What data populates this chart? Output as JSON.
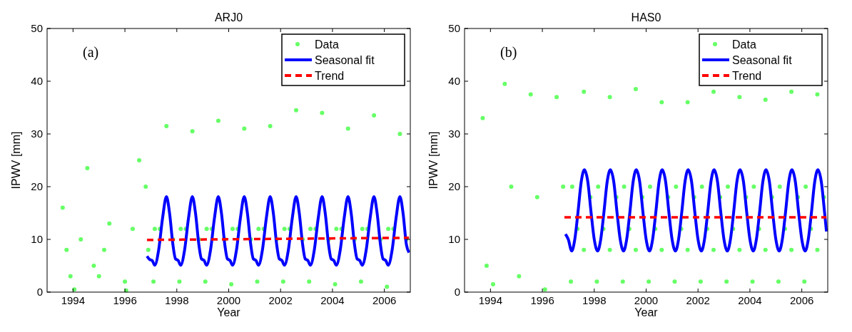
{
  "chart_data": [
    {
      "type": "scatter",
      "title": "ARJ0",
      "xlabel": "Year",
      "ylabel": "IPWV [mm]",
      "annotations": [
        "(a)"
      ],
      "xlim": [
        1993,
        2007
      ],
      "xticks": [
        1994,
        1996,
        1998,
        2000,
        2002,
        2004,
        2006
      ],
      "ylim": [
        0,
        50
      ],
      "yticks": [
        0,
        10,
        20,
        30,
        40,
        50
      ],
      "grid": false,
      "legend": "top right",
      "series": [
        {
          "name": "Data",
          "marker": "circle",
          "color": "#66ff66",
          "x": [
            1993.6,
            1993.75,
            1993.9,
            1994.05,
            1994.3,
            1994.55,
            1994.8,
            1995.0,
            1995.2,
            1995.4,
            1996.0,
            1996.05,
            1996.3,
            1996.55,
            1996.8,
            1996.9,
            1997.1,
            1997.15,
            1997.35,
            1997.6,
            1997.85,
            1998.1,
            1998.15,
            1998.35,
            1998.6,
            1998.85,
            1999.1,
            1999.15,
            1999.35,
            1999.6,
            1999.85,
            2000.1,
            2000.15,
            2000.35,
            2000.6,
            2000.85,
            2001.1,
            2001.15,
            2001.35,
            2001.6,
            2001.85,
            2002.1,
            2002.15,
            2002.35,
            2002.6,
            2002.85,
            2003.1,
            2003.15,
            2003.35,
            2003.6,
            2003.85,
            2004.1,
            2004.15,
            2004.35,
            2004.6,
            2004.85,
            2005.1,
            2005.15,
            2005.35,
            2005.6,
            2005.85,
            2006.1,
            2006.15,
            2006.35,
            2006.6,
            2006.85
          ],
          "values": [
            16,
            8,
            3,
            0.5,
            10,
            23.5,
            5,
            3,
            8,
            13,
            2,
            0.3,
            12,
            25,
            20,
            8,
            2,
            12,
            12,
            31.5,
            10,
            2,
            12,
            12,
            30.5,
            10,
            2,
            12,
            12,
            32.5,
            10,
            1.5,
            12,
            12,
            31,
            10,
            2,
            12,
            12,
            31.5,
            10,
            2,
            12,
            12,
            34.5,
            10,
            2,
            12,
            12,
            34,
            10,
            1.5,
            12,
            12,
            31,
            10,
            2,
            12,
            12,
            33.5,
            10,
            1,
            12,
            12,
            30,
            10
          ]
        },
        {
          "name": "Seasonal fit",
          "type": "line",
          "marker": "none",
          "line_style": "solid",
          "color": "#0000ff",
          "x": [
            1996.85,
            1996.95,
            1997.05,
            1997.15,
            1997.3,
            1997.45,
            1997.6,
            1997.72,
            1997.85,
            1997.95,
            1998.05,
            1998.15,
            1998.3,
            1998.45,
            1998.6,
            1998.72,
            1998.85,
            1998.95,
            1999.05,
            1999.15,
            1999.3,
            1999.45,
            1999.6,
            1999.72,
            1999.85,
            1999.95,
            2000.05,
            2000.15,
            2000.3,
            2000.45,
            2000.6,
            2000.72,
            2000.85,
            2000.95,
            2001.05,
            2001.15,
            2001.3,
            2001.45,
            2001.6,
            2001.72,
            2001.85,
            2001.95,
            2002.05,
            2002.15,
            2002.3,
            2002.45,
            2002.6,
            2002.72,
            2002.85,
            2002.95,
            2003.05,
            2003.15,
            2003.3,
            2003.45,
            2003.6,
            2003.72,
            2003.85,
            2003.95,
            2004.05,
            2004.15,
            2004.3,
            2004.45,
            2004.6,
            2004.72,
            2004.85,
            2004.95,
            2005.05,
            2005.15,
            2005.3,
            2005.45,
            2005.6,
            2005.72,
            2005.85,
            2005.95,
            2006.05,
            2006.15,
            2006.3,
            2006.45,
            2006.6,
            2006.72,
            2006.85,
            2006.95
          ],
          "values": [
            6.8,
            6.2,
            6.0,
            5.1,
            8,
            14,
            18.1,
            15,
            9,
            6.3,
            6.0,
            5.1,
            8,
            14,
            18.1,
            15,
            9,
            6.3,
            6.0,
            5.1,
            8,
            14,
            18.1,
            15,
            9,
            6.3,
            6.0,
            5.1,
            8,
            14,
            18.1,
            15,
            9,
            6.3,
            6.0,
            5.1,
            8,
            14,
            18.1,
            15,
            9,
            6.3,
            6.0,
            5.1,
            8,
            14,
            18.1,
            15,
            9,
            6.3,
            6.0,
            5.1,
            8,
            14,
            18.1,
            15,
            9,
            6.3,
            6.0,
            5.1,
            8,
            14,
            18.1,
            15,
            9,
            6.3,
            6.0,
            5.1,
            8,
            14,
            18.1,
            15,
            9,
            6.3,
            6.0,
            5.1,
            8,
            14,
            18.1,
            15,
            9,
            7.5
          ]
        },
        {
          "name": "Trend",
          "type": "line",
          "marker": "none",
          "line_style": "dashed",
          "color": "#ff0000",
          "x": [
            1996.85,
            2006.95
          ],
          "values": [
            9.9,
            10.3
          ]
        }
      ]
    },
    {
      "type": "scatter",
      "title": "HAS0",
      "xlabel": "Year",
      "ylabel": "IPWV [mm]",
      "annotations": [
        "(b)"
      ],
      "xlim": [
        1993,
        2007
      ],
      "xticks": [
        1994,
        1996,
        1998,
        2000,
        2002,
        2004,
        2006
      ],
      "ylim": [
        0,
        50
      ],
      "yticks": [
        0,
        10,
        20,
        30,
        40,
        50
      ],
      "grid": false,
      "legend": "top right",
      "series": [
        {
          "name": "Data",
          "marker": "circle",
          "color": "#66ff66",
          "x": [
            1993.7,
            1993.85,
            1994.1,
            1994.55,
            1994.8,
            1995.1,
            1995.55,
            1995.8,
            1996.1,
            1996.55,
            1996.8,
            1997.1,
            1997.15,
            1997.35,
            1997.6,
            1997.6,
            1997.85,
            1998.1,
            1998.15,
            1998.35,
            1998.6,
            1998.6,
            1998.85,
            1999.1,
            1999.15,
            1999.35,
            1999.6,
            1999.6,
            1999.85,
            2000.1,
            2000.15,
            2000.35,
            2000.6,
            2000.6,
            2000.85,
            2001.1,
            2001.15,
            2001.35,
            2001.6,
            2001.6,
            2001.85,
            2002.1,
            2002.15,
            2002.35,
            2002.6,
            2002.6,
            2002.85,
            2003.1,
            2003.15,
            2003.35,
            2003.6,
            2003.6,
            2003.85,
            2004.1,
            2004.15,
            2004.35,
            2004.6,
            2004.6,
            2004.85,
            2005.1,
            2005.15,
            2005.35,
            2005.6,
            2005.6,
            2005.85,
            2006.1,
            2006.15,
            2006.35,
            2006.6,
            2006.6,
            2006.85
          ],
          "values": [
            33,
            5,
            1.5,
            39.5,
            20,
            3,
            37.5,
            18,
            0.5,
            37,
            20,
            2,
            20,
            12,
            38,
            8,
            18,
            2,
            20,
            12,
            37,
            8,
            18,
            2,
            20,
            12,
            38.5,
            8,
            18,
            2,
            20,
            12,
            36,
            8,
            18,
            2,
            20,
            12,
            36,
            8,
            18,
            2,
            20,
            12,
            38,
            8,
            18,
            2,
            20,
            12,
            37,
            8,
            18,
            2,
            20,
            12,
            36.5,
            8,
            18,
            2,
            20,
            12,
            38,
            8,
            18,
            2,
            20,
            12,
            37.5,
            8,
            18
          ]
        },
        {
          "name": "Seasonal fit",
          "type": "line",
          "marker": "none",
          "line_style": "solid",
          "color": "#0000ff",
          "x": [
            1996.89,
            1997.0,
            1997.13,
            1997.25,
            1997.37,
            1997.5,
            1997.62,
            1997.75,
            1997.88,
            1998.0,
            1998.13,
            1998.25,
            1998.37,
            1998.5,
            1998.62,
            1998.75,
            1998.88,
            1999.0,
            1999.13,
            1999.25,
            1999.37,
            1999.5,
            1999.62,
            1999.75,
            1999.88,
            2000.0,
            2000.13,
            2000.25,
            2000.37,
            2000.5,
            2000.62,
            2000.75,
            2000.88,
            2001.0,
            2001.13,
            2001.25,
            2001.37,
            2001.5,
            2001.62,
            2001.75,
            2001.88,
            2002.0,
            2002.13,
            2002.25,
            2002.37,
            2002.5,
            2002.62,
            2002.75,
            2002.88,
            2003.0,
            2003.13,
            2003.25,
            2003.37,
            2003.5,
            2003.62,
            2003.75,
            2003.88,
            2004.0,
            2004.13,
            2004.25,
            2004.37,
            2004.5,
            2004.62,
            2004.75,
            2004.88,
            2005.0,
            2005.13,
            2005.25,
            2005.37,
            2005.5,
            2005.62,
            2005.75,
            2005.88,
            2006.0,
            2006.13,
            2006.25,
            2006.37,
            2006.5,
            2006.62,
            2006.75,
            2006.88,
            2006.95
          ],
          "values": [
            11,
            10,
            7.8,
            10,
            15,
            21,
            23.2,
            21,
            15,
            10,
            7.8,
            10,
            15,
            21,
            23.2,
            21,
            15,
            10,
            7.8,
            10,
            15,
            21,
            23.2,
            21,
            15,
            10,
            7.8,
            10,
            15,
            21,
            23.2,
            21,
            15,
            10,
            7.8,
            10,
            15,
            21,
            23.2,
            21,
            15,
            10,
            7.8,
            10,
            15,
            21,
            23.2,
            21,
            15,
            10,
            7.8,
            10,
            15,
            21,
            23.2,
            21,
            15,
            10,
            7.8,
            10,
            15,
            21,
            23.2,
            21,
            15,
            10,
            7.8,
            10,
            15,
            21,
            23.2,
            21,
            15,
            10,
            7.8,
            10,
            15,
            21,
            23.2,
            21,
            15,
            11.5
          ]
        },
        {
          "name": "Trend",
          "type": "line",
          "marker": "none",
          "line_style": "dashed",
          "color": "#ff0000",
          "x": [
            1996.85,
            2006.95
          ],
          "values": [
            14.2,
            14.2
          ]
        }
      ]
    }
  ]
}
